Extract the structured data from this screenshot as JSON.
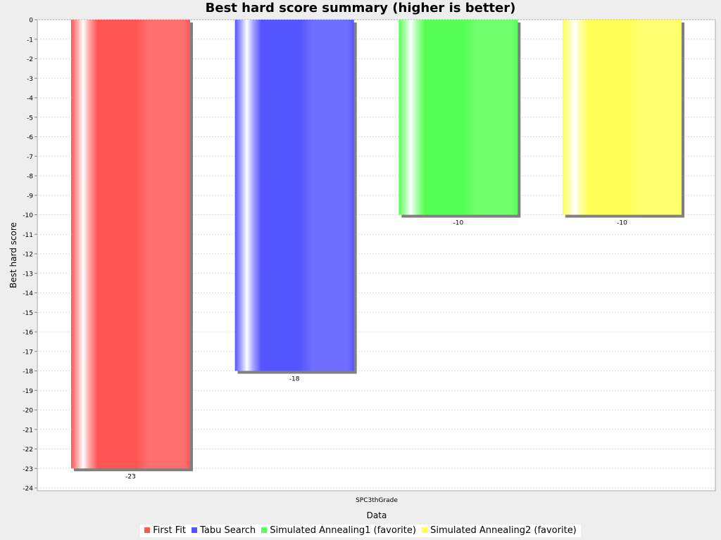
{
  "chart_data": {
    "type": "bar",
    "title": "Best hard score summary (higher is better)",
    "xlabel": "Data",
    "ylabel": "Best hard score",
    "categories": [
      "SPC3thGrade"
    ],
    "series": [
      {
        "name": "First Fit",
        "values": [
          -23
        ],
        "color": "#ff5555"
      },
      {
        "name": "Tabu Search",
        "values": [
          -18
        ],
        "color": "#5555ff"
      },
      {
        "name": "Simulated Annealing1 (favorite)",
        "values": [
          -10
        ],
        "color": "#55ff55"
      },
      {
        "name": "Simulated Annealing2 (favorite)",
        "values": [
          -10
        ],
        "color": "#ffff55"
      }
    ],
    "ylim": [
      -24,
      0
    ],
    "yticks": [
      "0",
      "-1",
      "-2",
      "-3",
      "-4",
      "-5",
      "-6",
      "-7",
      "-8",
      "-9",
      "-10",
      "-11",
      "-12",
      "-13",
      "-14",
      "-15",
      "-16",
      "-17",
      "-18",
      "-19",
      "-20",
      "-21",
      "-22",
      "-23",
      "-24"
    ],
    "data_labels": [
      "-23",
      "-18",
      "-10",
      "-10"
    ],
    "grid": true,
    "legend": "bottom"
  }
}
